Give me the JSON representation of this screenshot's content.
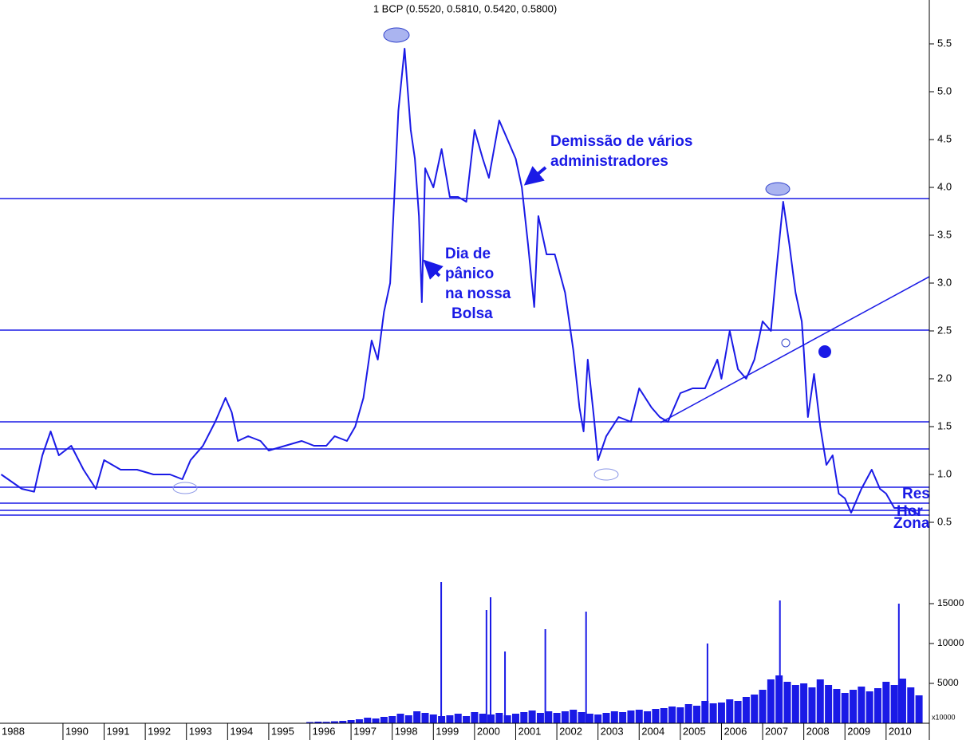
{
  "chart_data": {
    "type": "line",
    "title": "1 BCP (0.5520, 0.5810, 0.5420, 0.5800)",
    "xlim": [
      1988.47,
      2011.05
    ],
    "xticks": [
      1988,
      1990,
      1991,
      1992,
      1993,
      1994,
      1995,
      1996,
      1997,
      1998,
      1999,
      2000,
      2001,
      2002,
      2003,
      2004,
      2005,
      2006,
      2007,
      2008,
      2009,
      2010
    ],
    "ylim": [
      0.2,
      5.95
    ],
    "yticks": [
      0.5,
      {
        "value": 1,
        "label": "1.0"
      },
      1.5,
      {
        "value": 2,
        "label": "2.0"
      },
      2.5,
      {
        "value": 3,
        "label": "3.0"
      },
      3.5,
      {
        "value": 4,
        "label": "4.0"
      },
      4.5,
      {
        "value": 5,
        "label": "5.0"
      },
      5.5
    ],
    "series": [
      {
        "color": "#1a1ae6",
        "x": [
          1988.5,
          1989.0,
          1989.3,
          1989.5,
          1989.7,
          1989.9,
          1990.2,
          1990.5,
          1990.8,
          1991.0,
          1991.4,
          1991.8,
          1992.2,
          1992.6,
          1992.9,
          1993.1,
          1993.4,
          1993.7,
          1993.95,
          1994.1,
          1994.25,
          1994.5,
          1994.8,
          1995.0,
          1995.4,
          1995.8,
          1996.1,
          1996.4,
          1996.6,
          1996.9,
          1997.1,
          1997.3,
          1997.5,
          1997.65,
          1997.8,
          1997.95,
          1998.05,
          1998.15,
          1998.3,
          1998.45,
          1998.55,
          1998.65,
          1998.72,
          1998.8,
          1999.0,
          1999.2,
          1999.4,
          1999.6,
          1999.8,
          2000.0,
          2000.2,
          2000.35,
          2000.6,
          2000.8,
          2001.0,
          2001.15,
          2001.3,
          2001.45,
          2001.55,
          2001.75,
          2001.95,
          2002.2,
          2002.4,
          2002.55,
          2002.65,
          2002.75,
          2002.9,
          2003.0,
          2003.2,
          2003.5,
          2003.8,
          2004.0,
          2004.3,
          2004.5,
          2004.7,
          2005.0,
          2005.3,
          2005.6,
          2005.9,
          2006.0,
          2006.2,
          2006.4,
          2006.6,
          2006.8,
          2007.0,
          2007.2,
          2007.35,
          2007.5,
          2007.65,
          2007.8,
          2007.95,
          2008.0,
          2008.1,
          2008.25,
          2008.4,
          2008.55,
          2008.7,
          2008.85,
          2009.0,
          2009.15,
          2009.4,
          2009.65,
          2009.85,
          2010.0,
          2010.2,
          2010.5,
          2010.8
        ],
        "values": [
          1.0,
          0.85,
          0.82,
          1.2,
          1.45,
          1.2,
          1.3,
          1.05,
          0.85,
          1.15,
          1.05,
          1.05,
          1.0,
          1.0,
          0.95,
          1.15,
          1.3,
          1.55,
          1.8,
          1.65,
          1.35,
          1.4,
          1.35,
          1.25,
          1.3,
          1.35,
          1.3,
          1.3,
          1.4,
          1.35,
          1.5,
          1.8,
          2.4,
          2.2,
          2.7,
          3.0,
          3.9,
          4.8,
          5.45,
          4.6,
          4.3,
          3.7,
          2.8,
          4.2,
          4.0,
          4.4,
          3.9,
          3.9,
          3.85,
          4.6,
          4.3,
          4.1,
          4.7,
          4.5,
          4.3,
          4.0,
          3.4,
          2.75,
          3.7,
          3.3,
          3.3,
          2.9,
          2.3,
          1.7,
          1.45,
          2.2,
          1.6,
          1.15,
          1.4,
          1.6,
          1.55,
          1.9,
          1.7,
          1.6,
          1.55,
          1.85,
          1.9,
          1.9,
          2.2,
          2.0,
          2.5,
          2.1,
          2.0,
          2.2,
          2.6,
          2.5,
          3.2,
          3.85,
          3.4,
          2.9,
          2.6,
          2.3,
          1.6,
          2.05,
          1.5,
          1.1,
          1.2,
          0.8,
          0.75,
          0.6,
          0.85,
          1.05,
          0.85,
          0.8,
          0.65,
          0.65,
          0.58
        ]
      }
    ],
    "levels": [
      3.883,
      2.508,
      1.55,
      1.267,
      0.867,
      0.7,
      0.625,
      0.575
    ],
    "trendline": {
      "x": [
        2004.52,
        2011.05
      ],
      "values": [
        1.542,
        3.067
      ]
    },
    "annotations": [
      "Demissão de vários",
      "administradores",
      "Dia de",
      "pânico",
      "na nossa",
      "Bolsa",
      "Res",
      "Hor",
      "Zona"
    ],
    "volume": {
      "ylim": [
        0,
        19000
      ],
      "yticks": [
        5000,
        10000,
        15000
      ],
      "unit_label": "x10000",
      "x": [
        1996.0,
        1996.2,
        1996.4,
        1996.6,
        1996.8,
        1997.0,
        1997.2,
        1997.4,
        1997.6,
        1997.8,
        1998.0,
        1998.2,
        1998.4,
        1998.6,
        1998.8,
        1999.0,
        1999.2,
        1999.4,
        1999.6,
        1999.8,
        2000.0,
        2000.2,
        2000.4,
        2000.6,
        2000.8,
        2001.0,
        2001.2,
        2001.4,
        2001.6,
        2001.8,
        2002.0,
        2002.2,
        2002.4,
        2002.6,
        2002.8,
        2003.0,
        2003.2,
        2003.4,
        2003.6,
        2003.8,
        2004.0,
        2004.2,
        2004.4,
        2004.6,
        2004.8,
        2005.0,
        2005.2,
        2005.4,
        2005.6,
        2005.8,
        2006.0,
        2006.2,
        2006.4,
        2006.6,
        2006.8,
        2007.0,
        2007.2,
        2007.4,
        2007.6,
        2007.8,
        2008.0,
        2008.2,
        2008.4,
        2008.6,
        2008.8,
        2009.0,
        2009.2,
        2009.4,
        2009.6,
        2009.8,
        2010.0,
        2010.2,
        2010.4,
        2010.6,
        2010.8,
        1999.19,
        2000.29,
        2000.39,
        2000.74,
        2001.72,
        2002.71,
        2005.66,
        2007.42,
        2010.31
      ],
      "values": [
        150,
        200,
        180,
        250,
        300,
        400,
        500,
        700,
        600,
        800,
        900,
        1200,
        1000,
        1500,
        1300,
        1100,
        900,
        1000,
        1200,
        900,
        1400,
        1200,
        1100,
        1300,
        1000,
        1200,
        1400,
        1600,
        1300,
        1500,
        1300,
        1500,
        1700,
        1400,
        1200,
        1100,
        1300,
        1500,
        1400,
        1600,
        1700,
        1500,
        1800,
        1900,
        2100,
        2000,
        2400,
        2200,
        2800,
        2500,
        2600,
        3000,
        2800,
        3300,
        3600,
        4200,
        5500,
        6000,
        5200,
        4800,
        5000,
        4500,
        5500,
        4800,
        4300,
        3800,
        4200,
        4600,
        4000,
        4400,
        5200,
        4800,
        5600,
        4500,
        3500,
        17700,
        14200,
        15800,
        9000,
        11800,
        14000,
        10000,
        15400,
        15000
      ]
    }
  }
}
